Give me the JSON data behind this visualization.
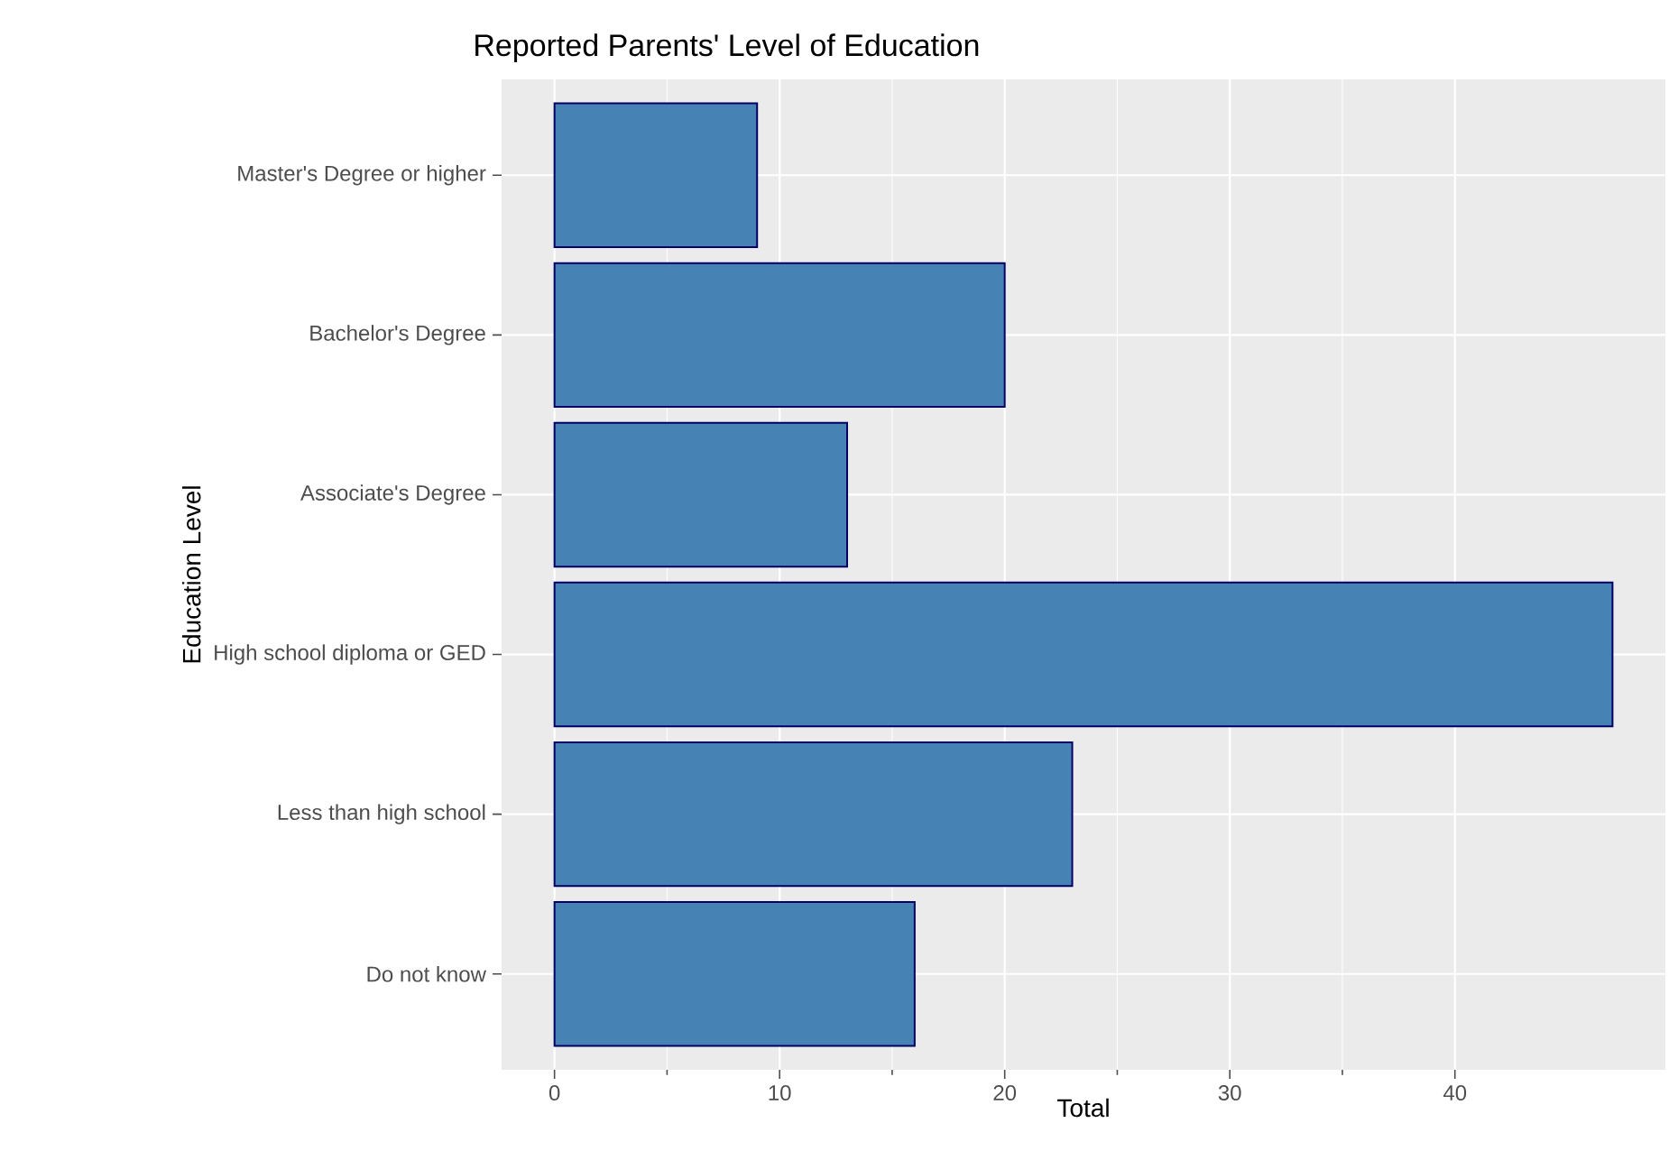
{
  "chart_data": {
    "type": "bar",
    "orientation": "horizontal",
    "title": "Reported Parents' Level of Education",
    "xlabel": "Total",
    "ylabel": "Education Level",
    "categories": [
      "Master's Degree or higher",
      "Bachelor's Degree",
      "Associate's Degree",
      "High school diploma or GED",
      "Less than high school",
      "Do not know"
    ],
    "values": [
      9,
      20,
      13,
      47,
      23,
      16
    ],
    "color": "#4682b4",
    "xlim": [
      -2.35,
      49.35
    ],
    "xticks": [
      0,
      10,
      20,
      30,
      40
    ],
    "grid": true
  }
}
